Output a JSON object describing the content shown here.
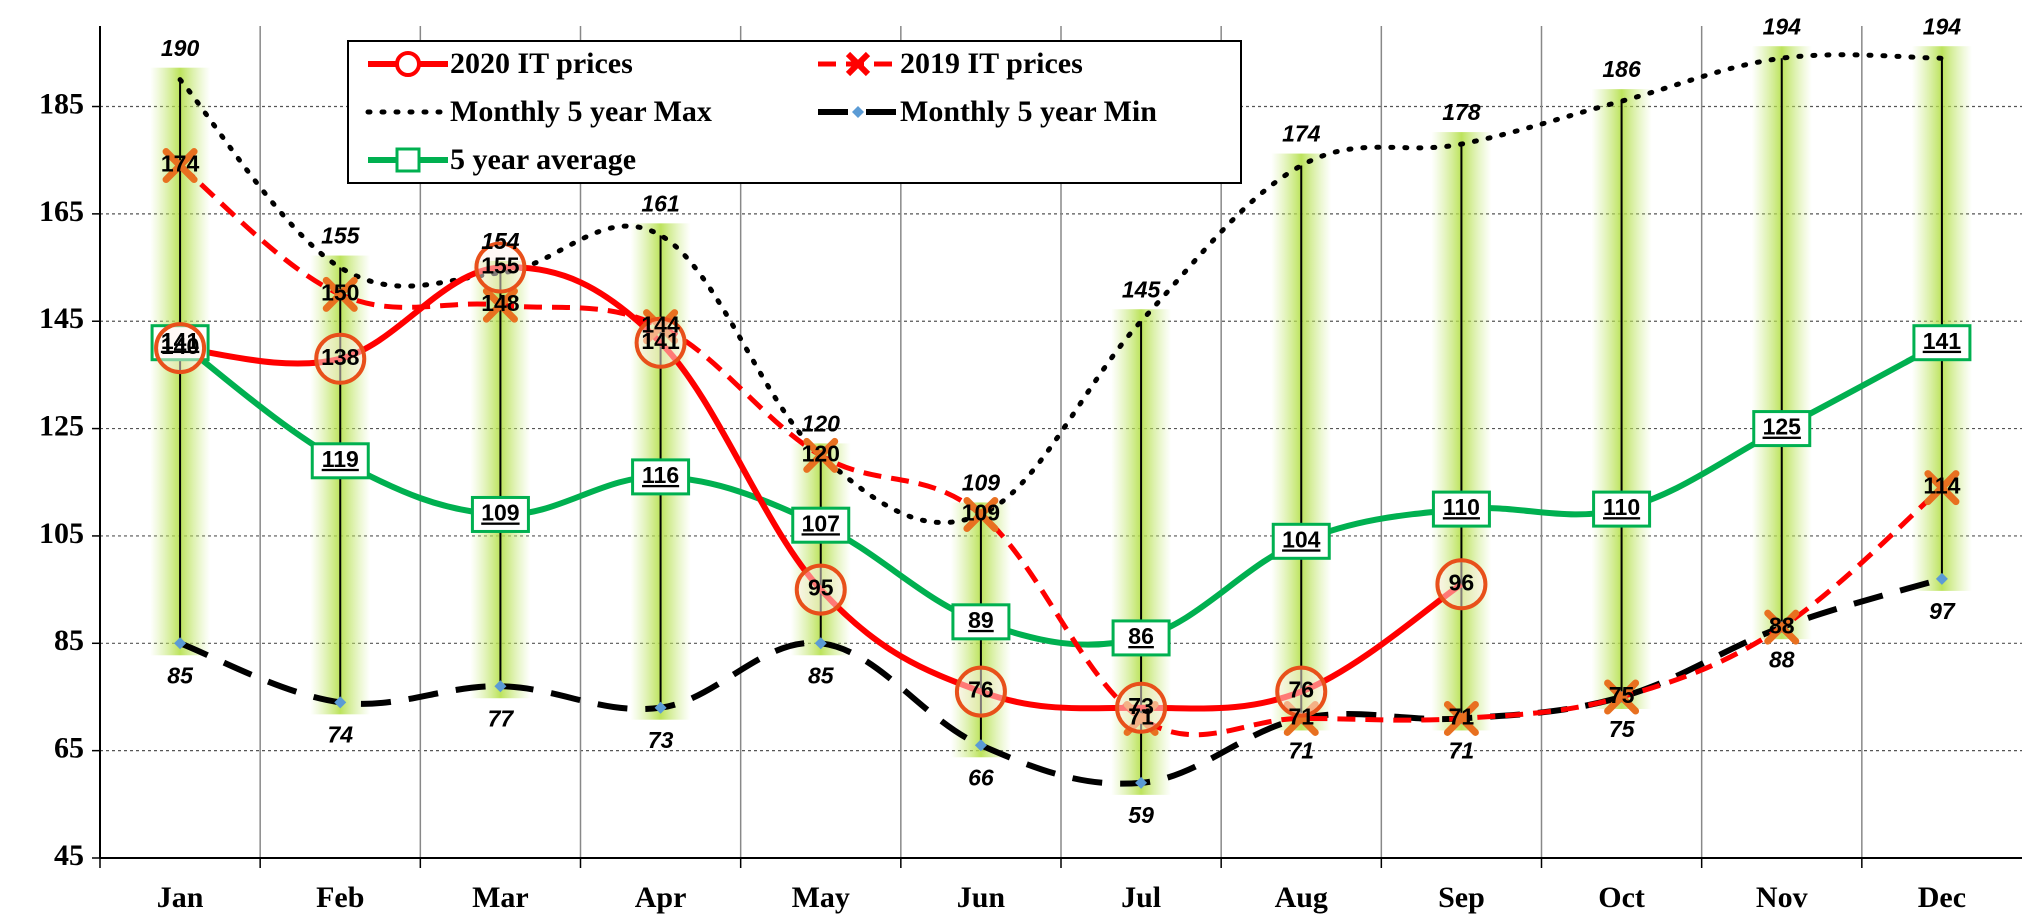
{
  "chart_data": {
    "type": "line",
    "categories": [
      "Jan",
      "Feb",
      "Mar",
      "Apr",
      "May",
      "Jun",
      "Jul",
      "Aug",
      "Sep",
      "Oct",
      "Nov",
      "Dec"
    ],
    "series": [
      {
        "name": "2020 IT prices",
        "color": "#ff0000",
        "line": "solid",
        "marker": "circle",
        "values": [
          140,
          138,
          155,
          141,
          95,
          76,
          73,
          76,
          96,
          null,
          null,
          null
        ]
      },
      {
        "name": "2019 IT prices",
        "color": "#ff0000",
        "line": "dashed",
        "marker": "x",
        "values": [
          174,
          150,
          148,
          144,
          120,
          109,
          71,
          71,
          71,
          75,
          88,
          114
        ]
      },
      {
        "name": "Monthly 5 year Max",
        "color": "#000000",
        "line": "dotted",
        "marker": "none",
        "values": [
          190,
          155,
          154,
          161,
          120,
          109,
          145,
          174,
          178,
          186,
          194,
          194
        ]
      },
      {
        "name": "Monthly 5 year Min",
        "color": "#000000",
        "line": "longdash",
        "marker": "diamond",
        "values": [
          85,
          74,
          77,
          73,
          85,
          66,
          59,
          71,
          71,
          75,
          88,
          97
        ]
      },
      {
        "name": "5 year average",
        "color": "#00b050",
        "line": "solid",
        "marker": "square",
        "values": [
          141,
          119,
          109,
          116,
          107,
          89,
          86,
          104,
          110,
          110,
          125,
          141
        ]
      }
    ],
    "ylim": [
      45,
      200
    ],
    "yticks": [
      45,
      65,
      85,
      105,
      125,
      145,
      165,
      185
    ],
    "grid": true,
    "legend": "top"
  }
}
